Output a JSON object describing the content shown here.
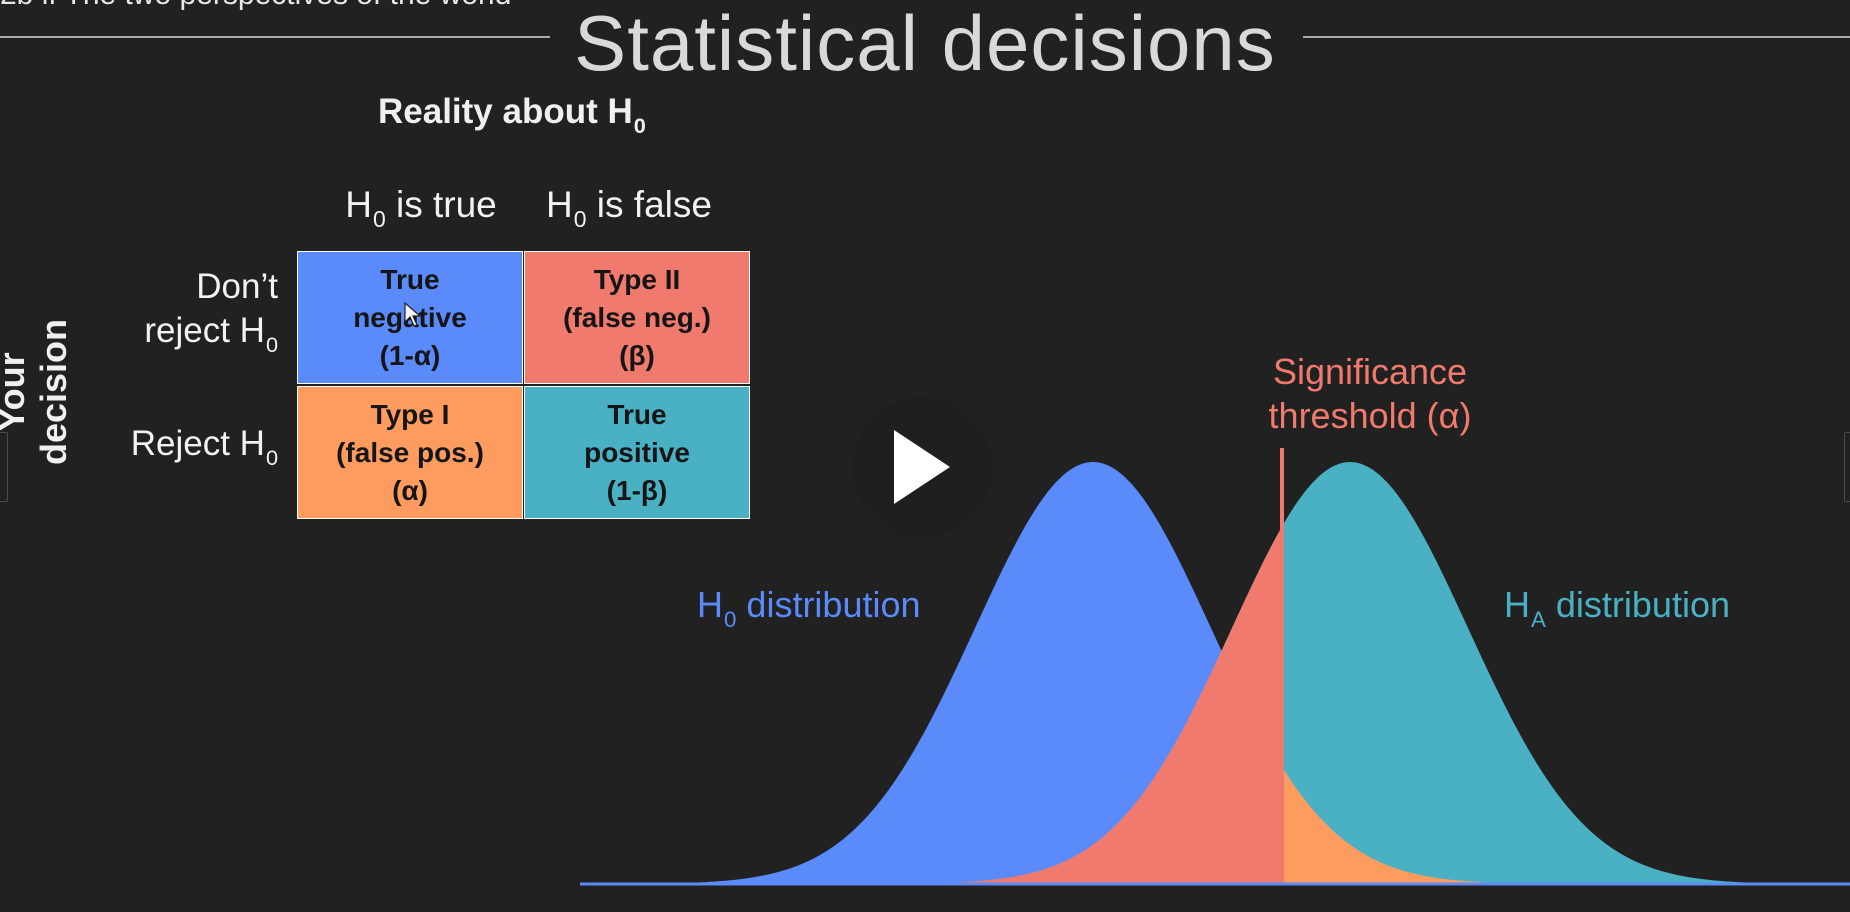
{
  "slide": {
    "cut_caption": "2b if The two perspectives of the world",
    "title": "Statistical decisions",
    "reality_heading": {
      "text": "Reality about H",
      "sub": "0"
    },
    "decision_axis_label": "Your decision",
    "column_headers": [
      {
        "pre": "H",
        "sub": "0",
        "post": " is true"
      },
      {
        "pre": "H",
        "sub": "0",
        "post": " is false"
      }
    ],
    "row_headers": [
      {
        "line1": "Don’t",
        "line2": "reject H",
        "sub": "0"
      },
      {
        "line1": "",
        "line2": "Reject H",
        "sub": "0"
      }
    ],
    "matrix": [
      {
        "lines": [
          "True",
          "negative",
          "(1-α)"
        ],
        "color": "#5b8afb"
      },
      {
        "lines": [
          "Type II",
          "(false neg.)",
          "(β)"
        ],
        "color": "#f07a6e"
      },
      {
        "lines": [
          "Type I",
          "(false pos.)",
          "(α)"
        ],
        "color": "#fe9b5f"
      },
      {
        "lines": [
          "True",
          "positive",
          "(1-β)"
        ],
        "color": "#4ab1c5"
      }
    ]
  },
  "distributions": {
    "h0": {
      "pre": "H",
      "sub": "0",
      "post": " distribution",
      "color": "#5b8afb"
    },
    "ha": {
      "pre": "H",
      "sub": "A",
      "post": " distribution",
      "color": "#4ab1c5"
    },
    "threshold": {
      "line1": "Significance",
      "line2": "threshold (α)",
      "color": "#f07a6e"
    },
    "beta_color": "#f07a6e",
    "alpha_color": "#fe9b5f"
  },
  "player": {
    "play_icon": "play-icon"
  }
}
